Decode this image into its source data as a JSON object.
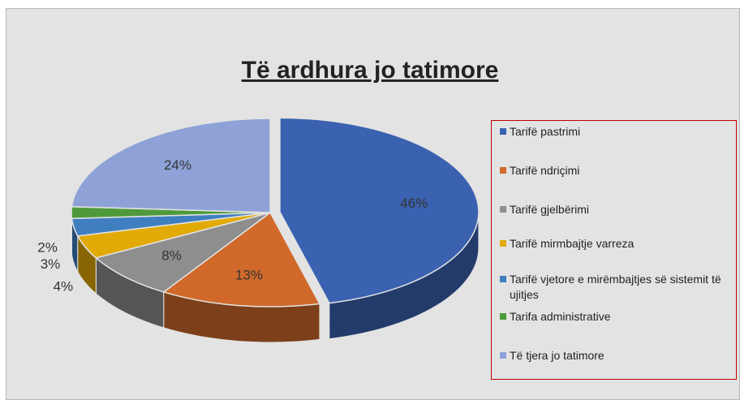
{
  "chart_data": {
    "type": "pie",
    "title": "Të ardhura jo tatimore",
    "categories": [
      "Tarifë pastrimi",
      "Tarifë ndriçimi",
      "Tarifë  gjelbërimi",
      "Tarifë mirmbajtje varreza",
      "Tarifë vjetore e mirëmbajtjes së sistemit të  ujitjes",
      "Tarifa administrative",
      "Të tjera jo tatimore"
    ],
    "values": [
      46,
      13,
      8,
      4,
      3,
      2,
      24
    ],
    "value_labels": [
      "46%",
      "13%",
      "8%",
      "4%",
      "3%",
      "2%",
      "24%"
    ],
    "colors": [
      "#3a62b0",
      "#d0692a",
      "#8e8e8e",
      "#e2aa06",
      "#3f7fc0",
      "#4e9a3a",
      "#8ea2d8"
    ],
    "legend": "right"
  }
}
